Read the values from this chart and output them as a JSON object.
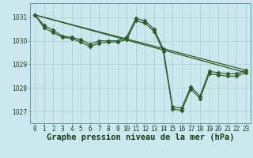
{
  "background_color": "#cce8ef",
  "grid_color": "#aacccc",
  "line_color": "#2d5a27",
  "marker_color": "#2d5a27",
  "x_ticks": [
    0,
    1,
    2,
    3,
    4,
    5,
    6,
    7,
    8,
    9,
    10,
    11,
    12,
    13,
    14,
    15,
    16,
    17,
    18,
    19,
    20,
    21,
    22,
    23
  ],
  "xlim": [
    -0.5,
    23.5
  ],
  "ylim": [
    1026.5,
    1031.6
  ],
  "yticks": [
    1027,
    1028,
    1029,
    1030,
    1031
  ],
  "xlabel": "Graphe pression niveau de la mer (hPa)",
  "xlabel_fontsize": 7.5,
  "line1_x": [
    0,
    1,
    2,
    3,
    4,
    5,
    6,
    7,
    8,
    9,
    10,
    11,
    12,
    13,
    14,
    15,
    16,
    17,
    18,
    19,
    20,
    21,
    22,
    23
  ],
  "line1_y": [
    1031.1,
    1030.65,
    1030.45,
    1030.2,
    1030.15,
    1030.05,
    1029.85,
    1030.0,
    1030.0,
    1030.0,
    1030.15,
    1030.95,
    1030.85,
    1030.5,
    1029.65,
    1027.2,
    1027.15,
    1028.05,
    1027.65,
    1028.7,
    1028.65,
    1028.6,
    1028.6,
    1028.75
  ],
  "line2_x": [
    0,
    1,
    2,
    3,
    4,
    5,
    6,
    7,
    8,
    9,
    10,
    11,
    12,
    13,
    14,
    15,
    16,
    17,
    18,
    19,
    20,
    21,
    22,
    23
  ],
  "line2_y": [
    1031.1,
    1030.55,
    1030.35,
    1030.15,
    1030.1,
    1029.95,
    1029.75,
    1029.9,
    1029.95,
    1029.95,
    1030.05,
    1030.85,
    1030.75,
    1030.4,
    1029.55,
    1027.1,
    1027.05,
    1027.95,
    1027.55,
    1028.6,
    1028.55,
    1028.5,
    1028.5,
    1028.65
  ],
  "line3_x": [
    0,
    23
  ],
  "line3_y": [
    1031.1,
    1028.75
  ],
  "line4_x": [
    0,
    23
  ],
  "line4_y": [
    1031.1,
    1028.65
  ],
  "tick_fontsize": 5.5,
  "marker_size": 2.5,
  "linewidth": 0.9
}
